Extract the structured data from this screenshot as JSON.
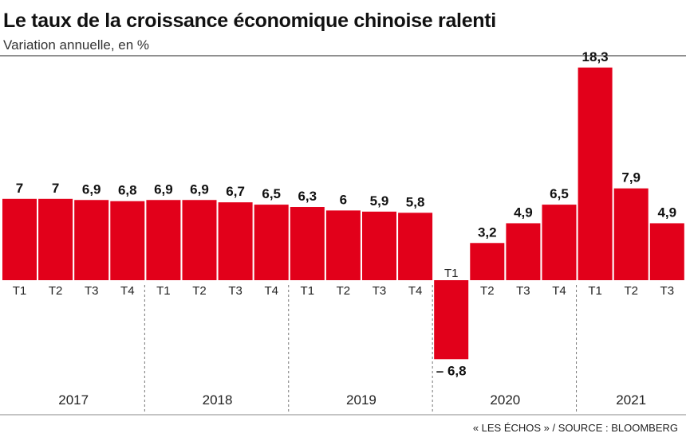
{
  "title": "Le taux de la croissance économique chinoise ralenti",
  "subtitle": "Variation annuelle, en %",
  "source": "« LES ÉCHOS » / SOURCE : BLOOMBERG",
  "colors": {
    "bar": "#e2001a",
    "text": "#111111"
  },
  "chart_data": {
    "type": "bar",
    "title": "Le taux de la croissance économique chinoise ralenti",
    "subtitle": "Variation annuelle, en %",
    "ylim": [
      -7.5,
      19
    ],
    "grid": false,
    "categories": [
      "T1",
      "T2",
      "T3",
      "T4",
      "T1",
      "T2",
      "T3",
      "T4",
      "T1",
      "T2",
      "T3",
      "T4",
      "T1",
      "T2",
      "T3",
      "T4",
      "T1",
      "T2",
      "T3"
    ],
    "years": [
      {
        "label": "2017",
        "count": 4
      },
      {
        "label": "2018",
        "count": 4
      },
      {
        "label": "2019",
        "count": 4
      },
      {
        "label": "2020",
        "count": 4
      },
      {
        "label": "2021",
        "count": 3
      }
    ],
    "values": [
      7,
      7,
      6.9,
      6.8,
      6.9,
      6.9,
      6.7,
      6.5,
      6.3,
      6,
      5.9,
      5.8,
      -6.8,
      3.2,
      4.9,
      6.5,
      18.3,
      7.9,
      4.9
    ],
    "value_labels": [
      "7",
      "7",
      "6,9",
      "6,8",
      "6,9",
      "6,9",
      "6,7",
      "6,5",
      "6,3",
      "6",
      "5,9",
      "5,8",
      "– 6,8",
      "3,2",
      "4,9",
      "6,5",
      "18,3",
      "7,9",
      "4,9"
    ]
  }
}
